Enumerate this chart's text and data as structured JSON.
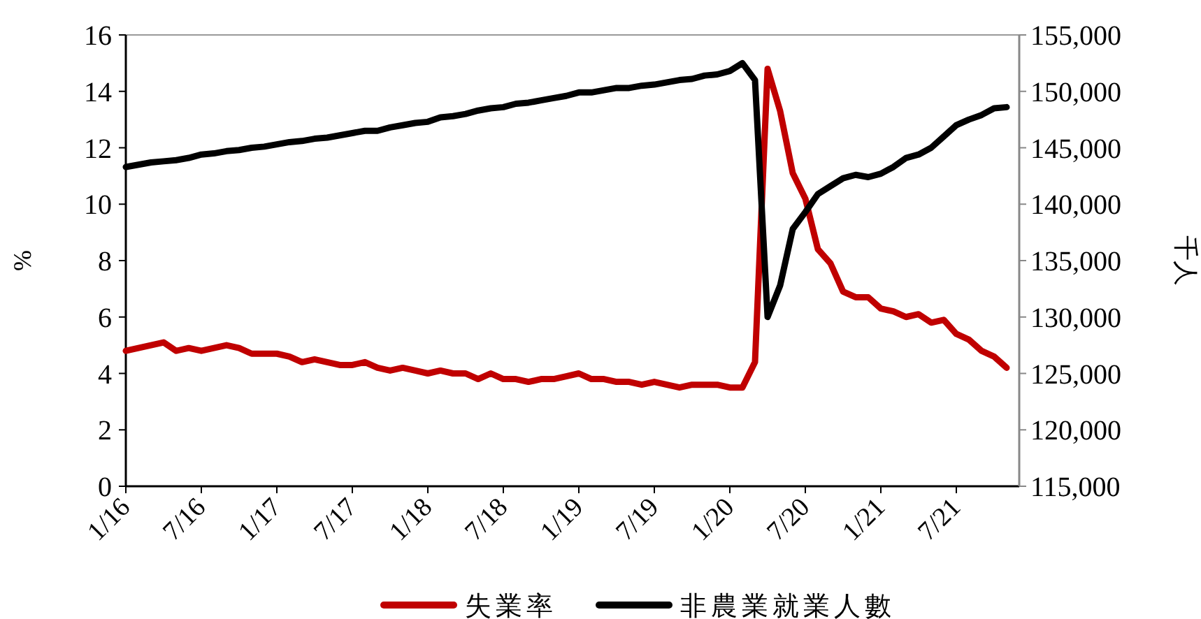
{
  "chart_data": {
    "type": "line",
    "ylabel": "%",
    "y2label": "千人",
    "legend": "bottom",
    "x": [
      "2016-01",
      "2016-02",
      "2016-03",
      "2016-04",
      "2016-05",
      "2016-06",
      "2016-07",
      "2016-08",
      "2016-09",
      "2016-10",
      "2016-11",
      "2016-12",
      "2017-01",
      "2017-02",
      "2017-03",
      "2017-04",
      "2017-05",
      "2017-06",
      "2017-07",
      "2017-08",
      "2017-09",
      "2017-10",
      "2017-11",
      "2017-12",
      "2018-01",
      "2018-02",
      "2018-03",
      "2018-04",
      "2018-05",
      "2018-06",
      "2018-07",
      "2018-08",
      "2018-09",
      "2018-10",
      "2018-11",
      "2018-12",
      "2019-01",
      "2019-02",
      "2019-03",
      "2019-04",
      "2019-05",
      "2019-06",
      "2019-07",
      "2019-08",
      "2019-09",
      "2019-10",
      "2019-11",
      "2019-12",
      "2020-01",
      "2020-02",
      "2020-03",
      "2020-04",
      "2020-05",
      "2020-06",
      "2020-07",
      "2020-08",
      "2020-09",
      "2020-10",
      "2020-11",
      "2020-12",
      "2021-01",
      "2021-02",
      "2021-03",
      "2021-04",
      "2021-05",
      "2021-06",
      "2021-07",
      "2021-08",
      "2021-09",
      "2021-10",
      "2021-11"
    ],
    "xlim": [
      "2016-01",
      "2021-12"
    ],
    "xticks": [
      {
        "value": "2016-01",
        "label": "1/16"
      },
      {
        "value": "2016-07",
        "label": "7/16"
      },
      {
        "value": "2017-01",
        "label": "1/17"
      },
      {
        "value": "2017-07",
        "label": "7/17"
      },
      {
        "value": "2018-01",
        "label": "1/18"
      },
      {
        "value": "2018-07",
        "label": "7/18"
      },
      {
        "value": "2019-01",
        "label": "1/19"
      },
      {
        "value": "2019-07",
        "label": "7/19"
      },
      {
        "value": "2020-01",
        "label": "1/20"
      },
      {
        "value": "2020-07",
        "label": "7/20"
      },
      {
        "value": "2021-01",
        "label": "1/21"
      },
      {
        "value": "2021-07",
        "label": "7/21"
      }
    ],
    "ylim": [
      0,
      16
    ],
    "yticks": [
      0,
      2,
      4,
      6,
      8,
      10,
      12,
      14,
      16
    ],
    "y2lim": [
      115000,
      155000
    ],
    "y2ticks": [
      {
        "value": 115000,
        "label": "115,000"
      },
      {
        "value": 120000,
        "label": "120,000"
      },
      {
        "value": 125000,
        "label": "125,000"
      },
      {
        "value": 130000,
        "label": "130,000"
      },
      {
        "value": 135000,
        "label": "135,000"
      },
      {
        "value": 140000,
        "label": "140,000"
      },
      {
        "value": 145000,
        "label": "145,000"
      },
      {
        "value": 150000,
        "label": "150,000"
      },
      {
        "value": 155000,
        "label": "155,000"
      }
    ],
    "series": [
      {
        "name": "失業率",
        "color": "#c00000",
        "values": [
          4.8,
          4.9,
          5.0,
          5.1,
          4.8,
          4.9,
          4.8,
          4.9,
          5.0,
          4.9,
          4.7,
          4.7,
          4.7,
          4.6,
          4.4,
          4.5,
          4.4,
          4.3,
          4.3,
          4.4,
          4.2,
          4.1,
          4.2,
          4.1,
          4.0,
          4.1,
          4.0,
          4.0,
          3.8,
          4.0,
          3.8,
          3.8,
          3.7,
          3.8,
          3.8,
          3.9,
          4.0,
          3.8,
          3.8,
          3.7,
          3.7,
          3.6,
          3.7,
          3.6,
          3.5,
          3.6,
          3.6,
          3.6,
          3.5,
          3.5,
          4.4,
          14.8,
          13.3,
          11.1,
          10.2,
          8.4,
          7.9,
          6.9,
          6.7,
          6.7,
          6.3,
          6.2,
          6.0,
          6.1,
          5.8,
          5.9,
          5.4,
          5.2,
          4.8,
          4.6,
          4.2
        ]
      },
      {
        "name": "非農業就業人數",
        "color": "#000000",
        "axis": "y2",
        "values": [
          143300,
          143500,
          143700,
          143800,
          143900,
          144100,
          144400,
          144500,
          144700,
          144800,
          145000,
          145100,
          145300,
          145500,
          145600,
          145800,
          145900,
          146100,
          146300,
          146500,
          146500,
          146800,
          147000,
          147200,
          147300,
          147700,
          147800,
          148000,
          148300,
          148500,
          148600,
          148900,
          149000,
          149200,
          149400,
          149600,
          149900,
          149900,
          150100,
          150300,
          150300,
          150500,
          150600,
          150800,
          151000,
          151100,
          151400,
          151500,
          151800,
          152500,
          151000,
          130000,
          132800,
          137800,
          139300,
          140900,
          141600,
          142300,
          142600,
          142400,
          142700,
          143300,
          144100,
          144400,
          145000,
          146000,
          147000,
          147500,
          147900,
          148500,
          148600
        ]
      }
    ]
  }
}
